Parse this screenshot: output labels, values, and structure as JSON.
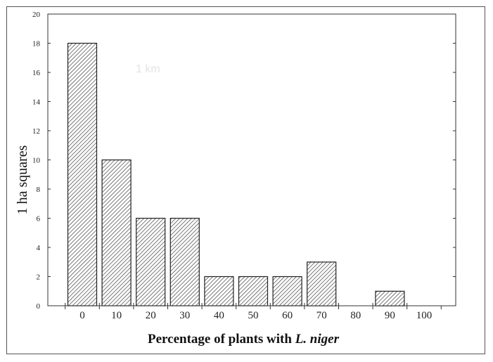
{
  "chart_data": {
    "type": "bar",
    "categories": [
      "0",
      "10",
      "20",
      "30",
      "40",
      "50",
      "60",
      "70",
      "80",
      "90",
      "100"
    ],
    "values": [
      18,
      10,
      6,
      6,
      2,
      2,
      2,
      3,
      0,
      1,
      0
    ],
    "ylabel": "1 ha squares",
    "xlabel_prefix": "Percentage of plants with ",
    "xlabel_species": "L. niger",
    "ylim": [
      0,
      20
    ],
    "yticks": [
      0,
      2,
      4,
      6,
      8,
      10,
      12,
      14,
      16,
      18,
      20
    ],
    "grid": false,
    "bar_pattern": "diagonal hatch",
    "colors": {
      "bar_fill": "#ffffff",
      "hatch": "#333333",
      "axis": "#333333"
    }
  },
  "faint_text": {
    "scale_label": "1 km"
  }
}
